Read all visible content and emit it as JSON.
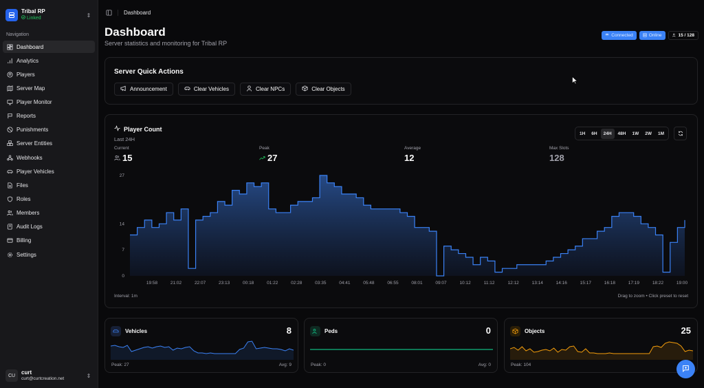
{
  "team": {
    "name": "Tribal RP",
    "status": "Linked"
  },
  "sidebar": {
    "section_label": "Navigation",
    "items": [
      {
        "label": "Dashboard",
        "icon": "dashboard-icon",
        "active": true
      },
      {
        "label": "Analytics",
        "icon": "bar-chart-icon"
      },
      {
        "label": "Players",
        "icon": "user-circle-icon"
      },
      {
        "label": "Server Map",
        "icon": "map-icon"
      },
      {
        "label": "Player Monitor",
        "icon": "monitor-icon"
      },
      {
        "label": "Reports",
        "icon": "flag-icon"
      },
      {
        "label": "Punishments",
        "icon": "ban-icon"
      },
      {
        "label": "Server Entities",
        "icon": "boxes-icon"
      },
      {
        "label": "Webhooks",
        "icon": "webhook-icon"
      },
      {
        "label": "Player Vehicles",
        "icon": "car-icon"
      },
      {
        "label": "Files",
        "icon": "file-icon"
      },
      {
        "label": "Roles",
        "icon": "shield-icon"
      },
      {
        "label": "Members",
        "icon": "users-icon"
      },
      {
        "label": "Audit Logs",
        "icon": "scroll-icon"
      },
      {
        "label": "Billing",
        "icon": "credit-card-icon"
      },
      {
        "label": "Settings",
        "icon": "gear-icon"
      }
    ]
  },
  "user": {
    "initials": "CU",
    "name": "curt",
    "email": "curt@curtcreation.net"
  },
  "header": {
    "breadcrumb": "Dashboard"
  },
  "page": {
    "title": "Dashboard",
    "subtitle": "Server statistics and monitoring for Tribal RP",
    "badges": {
      "connected": "Connected",
      "online": "Online",
      "players": "15 / 128"
    }
  },
  "quick_actions": {
    "title": "Server Quick Actions",
    "buttons": [
      "Announcement",
      "Clear Vehicles",
      "Clear NPCs",
      "Clear Objects"
    ]
  },
  "player_count": {
    "title": "Player Count",
    "range_label": "Last 24H",
    "stats": [
      {
        "label": "Current",
        "value": "15"
      },
      {
        "label": "Peak",
        "value": "27"
      },
      {
        "label": "Average",
        "value": "12"
      },
      {
        "label": "Max Slots",
        "value": "128"
      }
    ],
    "ranges": [
      "1H",
      "6H",
      "24H",
      "48H",
      "1W",
      "2W",
      "1M"
    ],
    "active_range": "24H",
    "interval": "Interval: 1m",
    "hint": "Drag to zoom • Click preset to reset"
  },
  "chart_data": {
    "type": "area",
    "title": "Player Count",
    "subtitle": "Last 24H",
    "xlabel": "",
    "ylabel": "",
    "y_ticks": [
      "0",
      "7",
      "14",
      "27"
    ],
    "ylim": [
      0,
      27
    ],
    "x_ticks": [
      "19:58",
      "21:02",
      "22:07",
      "23:13",
      "00:18",
      "01:22",
      "02:28",
      "03:35",
      "04:41",
      "05:48",
      "06:55",
      "08:01",
      "09:07",
      "10:12",
      "11:12",
      "12:12",
      "13:14",
      "14:16",
      "15:17",
      "16:18",
      "17:19",
      "18:22",
      "19:00"
    ],
    "series": [
      {
        "name": "Players",
        "color": "#3b82f6",
        "x": [
          "19:00",
          "19:20",
          "19:40",
          "19:58",
          "20:15",
          "20:30",
          "20:45",
          "21:00",
          "21:02",
          "21:10",
          "21:30",
          "21:50",
          "22:07",
          "22:20",
          "22:40",
          "22:55",
          "23:13",
          "23:30",
          "23:45",
          "00:00",
          "00:10",
          "00:18",
          "00:35",
          "00:50",
          "01:05",
          "01:22",
          "01:40",
          "01:55",
          "02:05",
          "02:20",
          "02:28",
          "02:45",
          "03:00",
          "03:15",
          "03:35",
          "03:50",
          "04:10",
          "04:25",
          "04:41",
          "05:00",
          "05:20",
          "05:40",
          "05:48",
          "05:55",
          "06:10",
          "06:30",
          "06:55",
          "07:20",
          "07:40",
          "08:01",
          "08:20",
          "08:40",
          "09:07",
          "09:30",
          "10:12",
          "10:40",
          "11:12",
          "11:40",
          "12:12",
          "12:40",
          "13:14",
          "13:40",
          "14:16",
          "14:40",
          "15:00",
          "15:17",
          "15:40",
          "16:18",
          "16:40",
          "17:00",
          "17:19",
          "17:40",
          "17:55",
          "18:05",
          "18:22",
          "18:40",
          "19:00"
        ],
        "values": [
          11,
          13,
          15,
          13,
          14,
          17,
          15,
          18,
          2,
          15,
          16,
          17,
          20,
          19,
          23,
          22,
          25,
          24,
          25,
          18,
          17,
          17,
          19,
          20,
          20,
          21,
          27,
          25,
          24,
          22,
          22,
          21,
          19,
          18,
          18,
          18,
          18,
          17,
          16,
          13,
          13,
          12,
          0,
          8,
          7,
          6,
          5,
          3,
          5,
          4,
          1,
          2,
          2,
          3,
          3,
          3,
          3,
          4,
          5,
          6,
          7,
          8,
          10,
          10,
          12,
          13,
          16,
          17,
          17,
          16,
          14,
          13,
          11,
          1,
          9,
          13,
          15
        ]
      }
    ]
  },
  "mini_cards": [
    {
      "title": "Vehicles",
      "value": "8",
      "peak": "Peak: 27",
      "avg": "Avg: 9",
      "color": "#3b82f6",
      "icon": "car-icon"
    },
    {
      "title": "Peds",
      "value": "0",
      "peak": "Peak: 0",
      "avg": "Avg: 0",
      "color": "#10b981",
      "icon": "users-icon"
    },
    {
      "title": "Objects",
      "value": "25",
      "peak": "Peak: 104",
      "avg": "Avg: ...",
      "color": "#f59e0b",
      "icon": "box-icon"
    }
  ]
}
